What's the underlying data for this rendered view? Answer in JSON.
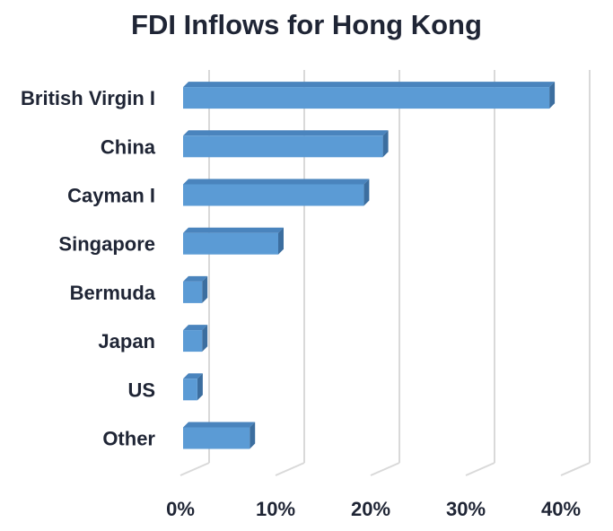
{
  "chart_data": {
    "type": "bar",
    "orientation": "horizontal",
    "style": "3d",
    "title": "FDI Inflows for Hong Kong",
    "xlabel": "",
    "ylabel": "",
    "categories": [
      "British Virgin I",
      "China",
      "Cayman I",
      "Singapore",
      "Bermuda",
      "Japan",
      "US",
      "Other"
    ],
    "values": [
      38.5,
      21,
      19,
      10,
      2,
      2,
      1.5,
      7
    ],
    "value_unit": "%",
    "xlim": [
      0,
      40
    ],
    "x_ticks": [
      "0%",
      "10%",
      "20%",
      "30%",
      "40%"
    ],
    "grid": true,
    "legend": "none",
    "colors": {
      "bar_front": "#5b9bd5",
      "bar_top": "#4a84bd",
      "bar_side": "#3c6e9f",
      "gridline": "#d9d9d9",
      "text": "#1f2535"
    }
  }
}
